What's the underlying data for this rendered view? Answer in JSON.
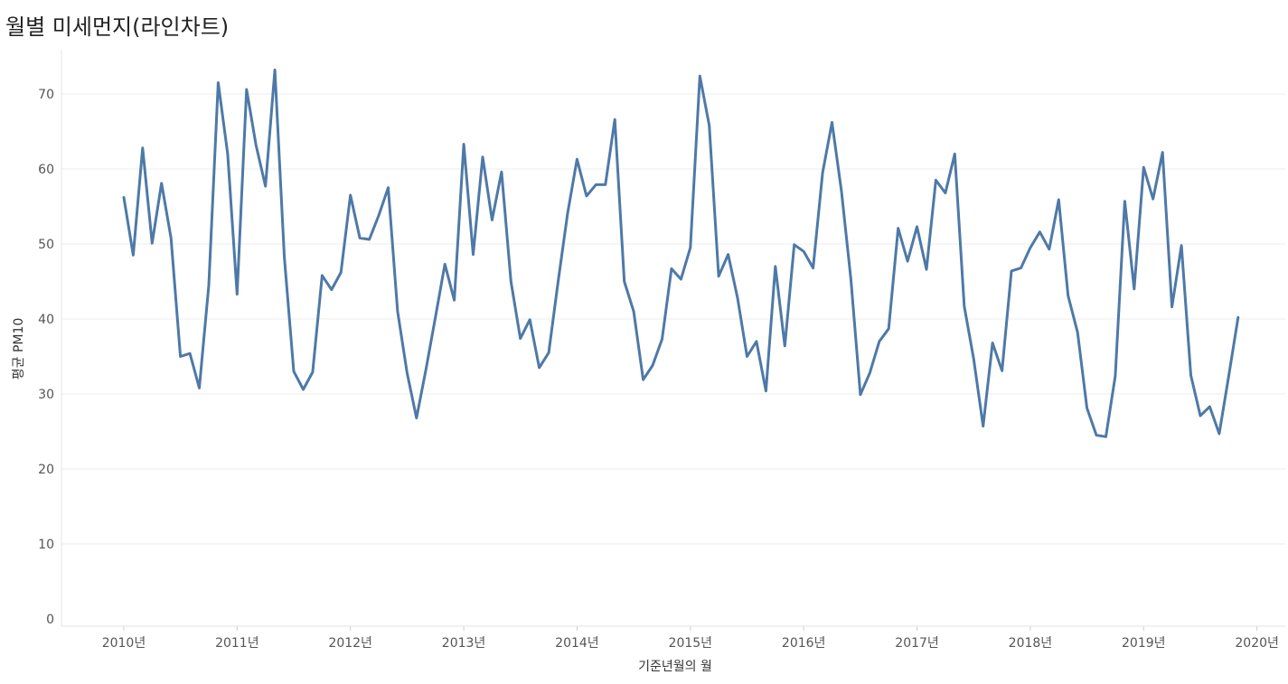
{
  "page": {
    "title": "월별 미세먼지(라인차트)"
  },
  "chart_data": {
    "type": "line",
    "title": "월별 미세먼지(라인차트)",
    "xlabel": "기준년월의 월",
    "ylabel": "평균 PM10",
    "ylim": [
      0,
      76
    ],
    "yticks": [
      0,
      10,
      20,
      30,
      40,
      50,
      60,
      70
    ],
    "xlim": [
      2009.45,
      2020.25
    ],
    "xticks": [
      {
        "value": 2010,
        "label": "2010년"
      },
      {
        "value": 2011,
        "label": "2011년"
      },
      {
        "value": 2012,
        "label": "2012년"
      },
      {
        "value": 2013,
        "label": "2013년"
      },
      {
        "value": 2014,
        "label": "2014년"
      },
      {
        "value": 2015,
        "label": "2015년"
      },
      {
        "value": 2016,
        "label": "2016년"
      },
      {
        "value": 2017,
        "label": "2017년"
      },
      {
        "value": 2018,
        "label": "2018년"
      },
      {
        "value": 2019,
        "label": "2019년"
      },
      {
        "value": 2020,
        "label": "2020년"
      }
    ],
    "grid": true,
    "line_color": "#4e79a7",
    "x": [
      "2010-01",
      "2010-02",
      "2010-03",
      "2010-04",
      "2010-05",
      "2010-06",
      "2010-07",
      "2010-08",
      "2010-09",
      "2010-10",
      "2010-11",
      "2010-12",
      "2011-01",
      "2011-02",
      "2011-03",
      "2011-04",
      "2011-05",
      "2011-06",
      "2011-07",
      "2011-08",
      "2011-09",
      "2011-10",
      "2011-11",
      "2011-12",
      "2012-01",
      "2012-02",
      "2012-03",
      "2012-04",
      "2012-05",
      "2012-06",
      "2012-07",
      "2012-08",
      "2012-09",
      "2012-10",
      "2012-11",
      "2012-12",
      "2013-01",
      "2013-02",
      "2013-03",
      "2013-04",
      "2013-05",
      "2013-06",
      "2013-07",
      "2013-08",
      "2013-09",
      "2013-10",
      "2013-11",
      "2013-12",
      "2014-01",
      "2014-02",
      "2014-03",
      "2014-04",
      "2014-05",
      "2014-06",
      "2014-07",
      "2014-08",
      "2014-09",
      "2014-10",
      "2014-11",
      "2014-12",
      "2015-01",
      "2015-02",
      "2015-03",
      "2015-04",
      "2015-05",
      "2015-06",
      "2015-07",
      "2015-08",
      "2015-09",
      "2015-10",
      "2015-11",
      "2015-12",
      "2016-01",
      "2016-02",
      "2016-03",
      "2016-04",
      "2016-05",
      "2016-06",
      "2016-07",
      "2016-08",
      "2016-09",
      "2016-10",
      "2016-11",
      "2016-12",
      "2017-01",
      "2017-02",
      "2017-03",
      "2017-04",
      "2017-05",
      "2017-06",
      "2017-07",
      "2017-08",
      "2017-09",
      "2017-10",
      "2017-11",
      "2017-12",
      "2018-01",
      "2018-02",
      "2018-03",
      "2018-04",
      "2018-05",
      "2018-06",
      "2018-07",
      "2018-08",
      "2018-09",
      "2018-10",
      "2018-11",
      "2018-12",
      "2019-01",
      "2019-02",
      "2019-03",
      "2019-04",
      "2019-05",
      "2019-06",
      "2019-07",
      "2019-08",
      "2019-09",
      "2019-10",
      "2019-11"
    ],
    "series": [
      {
        "values": [
          56.2,
          48.5,
          62.8,
          50.1,
          58.1,
          50.8,
          35.0,
          35.4,
          30.8,
          44.5,
          71.5,
          62.0,
          43.3,
          70.6,
          63.2,
          57.7,
          73.2,
          48.2,
          33.0,
          30.6,
          32.9,
          45.8,
          43.9,
          46.2,
          56.5,
          50.8,
          50.6,
          53.8,
          57.5,
          41.0,
          32.8,
          26.8,
          33.3,
          40.2,
          47.3,
          42.5,
          63.3,
          48.6,
          61.6,
          53.2,
          59.6,
          45.0,
          37.4,
          39.9,
          33.5,
          35.5,
          45.0,
          54.1,
          61.3,
          56.4,
          57.9,
          57.9,
          66.6,
          45.0,
          41.0,
          31.9,
          33.8,
          37.3,
          46.7,
          45.3,
          49.5,
          72.4,
          65.8,
          45.7,
          48.6,
          42.8,
          35.0,
          37.0,
          30.4,
          47.0,
          36.4,
          49.9,
          49.0,
          46.8,
          59.5,
          66.2,
          57.0,
          45.3,
          29.9,
          32.8,
          37.0,
          38.7,
          52.1,
          47.7,
          52.3,
          46.6,
          58.5,
          56.8,
          62.0,
          41.7,
          34.7,
          25.7,
          36.8,
          33.1,
          46.4,
          46.8,
          49.5,
          51.6,
          49.3,
          55.9,
          43.1,
          38.2,
          28.1,
          24.5,
          24.3,
          32.4,
          55.7,
          44.0,
          60.2,
          56.0,
          62.2,
          41.6,
          49.8,
          32.5,
          27.1,
          28.3,
          24.7,
          32.3,
          40.2
        ]
      }
    ]
  }
}
